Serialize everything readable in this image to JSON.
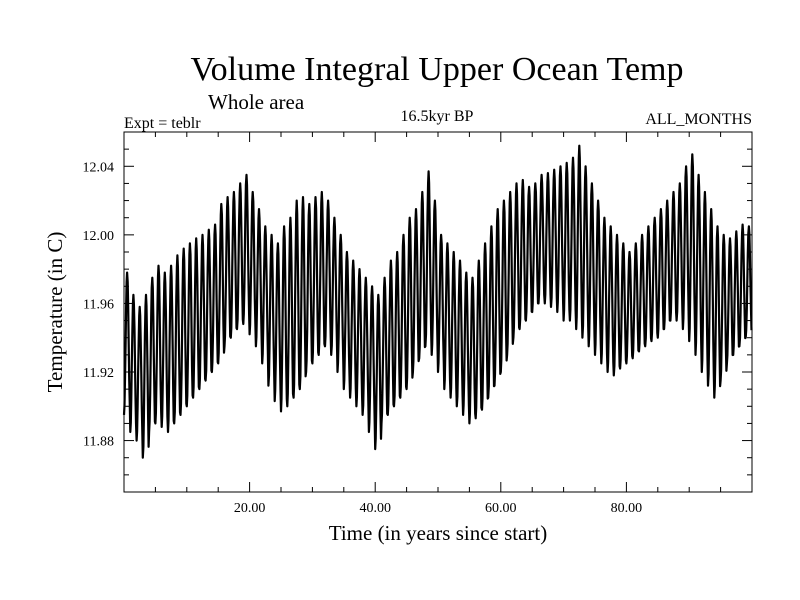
{
  "chart_data": {
    "type": "line",
    "title": "Volume Integral Upper Ocean Temp",
    "subtitle": "Whole area",
    "expt_label": "Expt = teblr",
    "period_label": "16.5kyr BP",
    "months_label": "ALL_MONTHS",
    "xlabel": "Time (in years since start)",
    "ylabel": "Temperature (in C)",
    "xlim": [
      0,
      100
    ],
    "ylim": [
      11.85,
      12.06
    ],
    "x_ticks": [
      20,
      40,
      60,
      80
    ],
    "x_tick_labels": [
      "20.00",
      "40.00",
      "60.00",
      "80.00"
    ],
    "y_ticks": [
      11.88,
      11.92,
      11.96,
      12.0,
      12.04
    ],
    "y_tick_labels": [
      "11.88",
      "11.92",
      "11.96",
      "12.00",
      "12.04"
    ],
    "series": [
      {
        "name": "Volume integral upper ocean temperature",
        "annual_peaks": [
          11.978,
          11.965,
          11.958,
          11.965,
          11.975,
          11.982,
          11.978,
          11.982,
          11.988,
          11.992,
          11.995,
          11.998,
          12.0,
          12.003,
          12.006,
          12.018,
          12.022,
          12.025,
          12.03,
          12.035,
          12.025,
          12.015,
          12.005,
          12.0,
          11.995,
          12.005,
          12.01,
          12.02,
          12.022,
          12.018,
          12.022,
          12.025,
          12.02,
          12.01,
          12.0,
          11.99,
          11.985,
          11.98,
          11.975,
          11.97,
          11.965,
          11.975,
          11.985,
          11.99,
          12.0,
          12.01,
          12.015,
          12.025,
          12.037,
          12.02,
          12.0,
          11.995,
          11.99,
          11.985,
          11.978,
          11.975,
          11.985,
          11.995,
          12.005,
          12.015,
          12.02,
          12.025,
          12.03,
          12.032,
          12.028,
          12.03,
          12.035,
          12.036,
          12.038,
          12.04,
          12.042,
          12.045,
          12.052,
          12.04,
          12.03,
          12.02,
          12.01,
          12.005,
          12.0,
          11.995,
          11.99,
          11.995,
          12.0,
          12.005,
          12.01,
          12.015,
          12.02,
          12.025,
          12.03,
          12.04,
          12.047,
          12.035,
          12.025,
          12.015,
          12.005,
          12.0,
          11.998,
          12.002,
          12.006,
          12.005
        ],
        "annual_troughs": [
          11.895,
          11.885,
          11.88,
          11.87,
          11.885,
          11.89,
          11.888,
          11.885,
          11.89,
          11.895,
          11.9,
          11.905,
          11.91,
          11.915,
          11.92,
          11.925,
          11.935,
          11.94,
          11.945,
          11.948,
          11.942,
          11.935,
          11.925,
          11.912,
          11.903,
          11.897,
          11.9,
          11.905,
          11.91,
          11.92,
          11.925,
          11.93,
          11.935,
          11.93,
          11.92,
          11.91,
          11.905,
          11.9,
          11.895,
          11.885,
          11.875,
          11.89,
          11.895,
          11.9,
          11.905,
          11.91,
          11.92,
          11.928,
          11.935,
          11.93,
          11.92,
          11.91,
          11.905,
          11.9,
          11.895,
          11.89,
          11.893,
          11.898,
          11.905,
          11.912,
          11.92,
          11.93,
          11.94,
          11.945,
          11.95,
          11.955,
          11.96,
          11.96,
          11.958,
          11.955,
          11.95,
          11.95,
          11.945,
          11.94,
          11.935,
          11.93,
          11.925,
          11.92,
          11.918,
          11.922,
          11.925,
          11.928,
          11.932,
          11.935,
          11.938,
          11.94,
          11.945,
          11.95,
          11.95,
          11.945,
          11.938,
          11.93,
          11.92,
          11.912,
          11.905,
          11.915,
          11.925,
          11.93,
          11.935,
          11.94
        ]
      }
    ]
  }
}
